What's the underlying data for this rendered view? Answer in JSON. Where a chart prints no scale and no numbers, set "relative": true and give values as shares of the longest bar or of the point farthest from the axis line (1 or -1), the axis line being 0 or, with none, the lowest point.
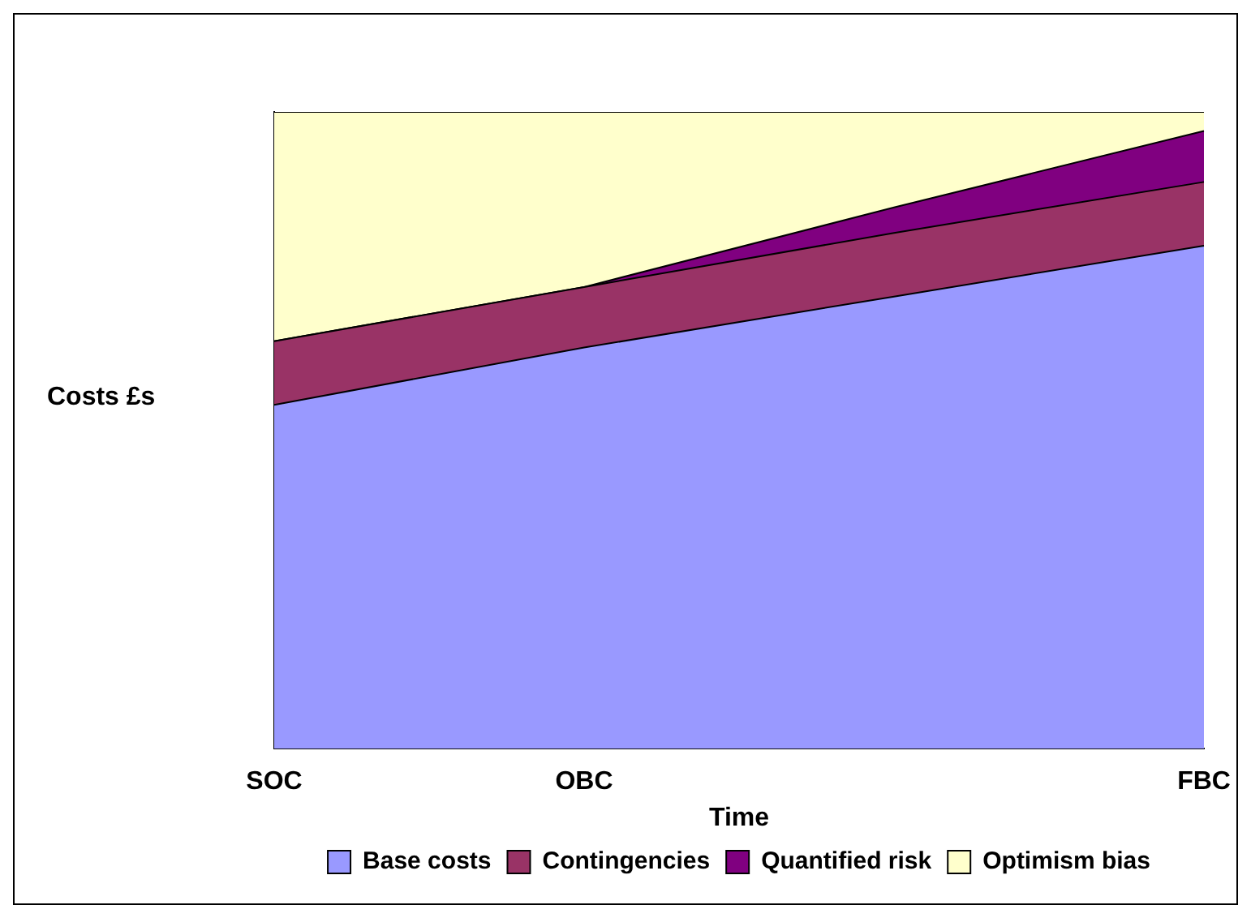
{
  "chart_data": {
    "type": "area",
    "stacked": true,
    "relative": true,
    "xlabel": "Time",
    "ylabel": "Costs £s",
    "categories": [
      "SOC",
      "OBC",
      null,
      "FBC"
    ],
    "legend": "bottom",
    "grid": false,
    "series": [
      {
        "name": "Base costs",
        "color": "#9999ff",
        "values": [
          0.54,
          0.63,
          0.71,
          0.79
        ]
      },
      {
        "name": "Contingencies",
        "color": "#993366",
        "values": [
          0.1,
          0.095,
          0.1,
          0.1
        ]
      },
      {
        "name": "Quantified risk",
        "color": "#800080",
        "values": [
          0,
          0,
          0.04,
          0.08
        ]
      },
      {
        "name": "Optimism bias",
        "color": "#ffffcc",
        "values": [
          0.36,
          0.275,
          0.15,
          0.03
        ]
      }
    ]
  }
}
